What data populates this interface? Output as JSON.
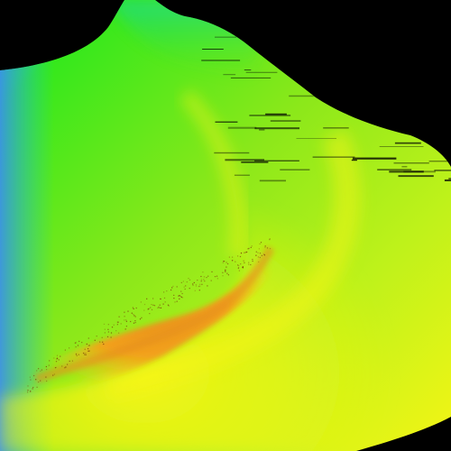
{
  "colors": {
    "background": "#000000",
    "edge_blue": "#3a8ff0",
    "edge_cyan": "#14d4b0",
    "green": "#33e81c",
    "green_light": "#8ce81a",
    "lime": "#bff21a",
    "yellow": "#f4f515",
    "amber": "#ffc61a",
    "orange": "#f3a11a",
    "orange_deep": "#e6901b"
  }
}
